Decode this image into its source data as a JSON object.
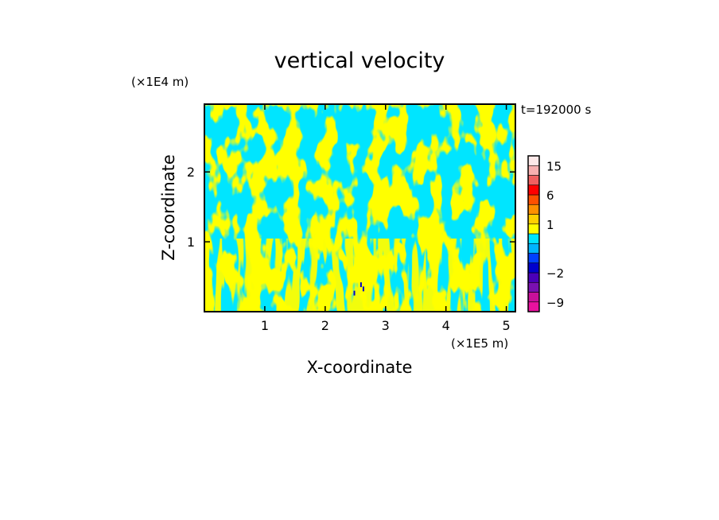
{
  "chart_data": {
    "type": "heatmap",
    "title": "vertical velocity",
    "xlabel": "X-coordinate",
    "ylabel": "Z-coordinate",
    "x_unit": "(×1E5 m)",
    "y_unit": "(×1E4 m)",
    "time_label": "t=192000 s",
    "xlim": [
      0.0,
      5.15
    ],
    "ylim": [
      0.0,
      2.97
    ],
    "x_ticks": [
      1,
      2,
      3,
      4,
      5
    ],
    "x_tick_labels": [
      "1",
      "2",
      "3",
      "4",
      "5"
    ],
    "y_ticks": [
      1,
      2
    ],
    "y_tick_labels": [
      "1",
      "2"
    ],
    "field_colors": {
      "negative": "#00e5ff",
      "positive": "#ffff00",
      "strong_negative": "#0000cc"
    },
    "colorbar": {
      "levels": [
        -12,
        -9,
        -6,
        -4,
        -2,
        -1,
        -0.5,
        0,
        0.5,
        1,
        2,
        4,
        6,
        9,
        12,
        15,
        20
      ],
      "colors": [
        "#e8129e",
        "#c8109a",
        "#7a10b0",
        "#4a00b8",
        "#0000cc",
        "#0040ff",
        "#00b4ff",
        "#00e5ff",
        "#ffff00",
        "#ffd000",
        "#ff9000",
        "#ff5000",
        "#ff0000",
        "#f06060",
        "#f8b0b0",
        "#fde8e8"
      ],
      "tick_values": [
        15,
        6,
        1,
        -2,
        -9
      ],
      "tick_labels": [
        "15",
        "6",
        "1",
        "−2",
        "−9"
      ]
    }
  }
}
